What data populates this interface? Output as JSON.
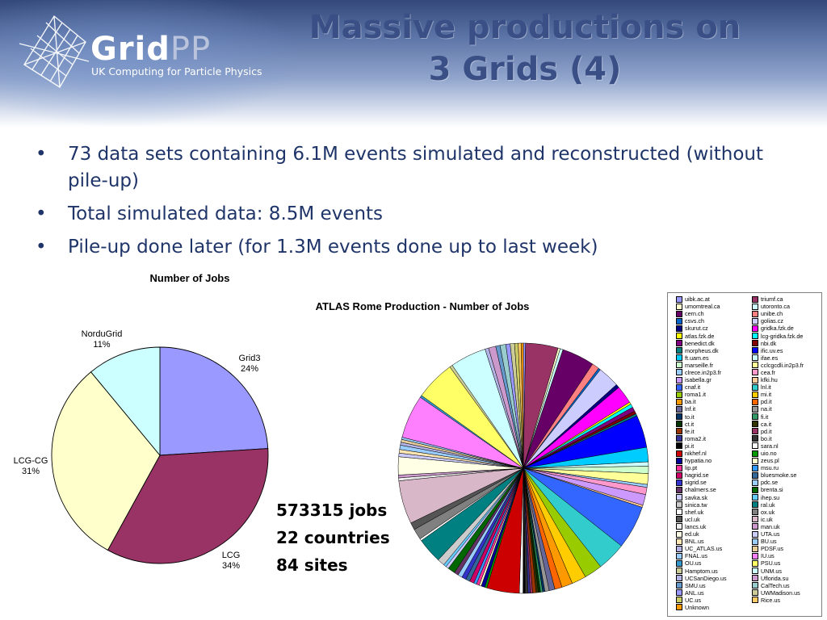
{
  "header": {
    "brand_main": "Grid",
    "brand_pp": "PP",
    "tagline": "UK Computing for Particle Physics",
    "title_line1": "Massive productions on",
    "title_line2": "3 Grids (4)"
  },
  "bullets": [
    "73 data sets containing 6.1M events simulated and reconstructed (without pile-up)",
    "Total simulated data: 8.5M events",
    "Pile-up done later (for 1.3M events done up to last week)"
  ],
  "stats": {
    "jobs": "573315 jobs",
    "countries": "22 countries",
    "sites": "84 sites"
  },
  "chart_data": [
    {
      "type": "pie",
      "title": "Number of Jobs",
      "slices": [
        {
          "label": "Grid3",
          "value": 24,
          "pct": "24%",
          "color": "#9999ff"
        },
        {
          "label": "LCG",
          "value": 34,
          "pct": "34%",
          "color": "#993366"
        },
        {
          "label": "LCG-CG",
          "value": 31,
          "pct": "31%",
          "color": "#ffffcc"
        },
        {
          "label": "NorduGrid",
          "value": 11,
          "pct": "11%",
          "color": "#ccffff"
        }
      ]
    },
    {
      "type": "pie",
      "title": "ATLAS Rome Production - Number of Jobs",
      "legend_position": "right",
      "slices": [
        {
          "label": "uibk.ac.at",
          "value": 0.3,
          "color": "#9999ff"
        },
        {
          "label": "triumf.ca",
          "value": 4.5,
          "color": "#993366"
        },
        {
          "label": "umomtreal.ca",
          "value": 0.3,
          "color": "#ffffcc"
        },
        {
          "label": "utoronto.ca",
          "value": 0.4,
          "color": "#ccffff"
        },
        {
          "label": "cern.ch",
          "value": 4.5,
          "color": "#660066"
        },
        {
          "label": "unibe.ch",
          "value": 1.0,
          "color": "#ff8080"
        },
        {
          "label": "csvs.ch",
          "value": 0.3,
          "color": "#0066cc"
        },
        {
          "label": "golias.cz",
          "value": 3.0,
          "color": "#ccccff"
        },
        {
          "label": "skurut.cz",
          "value": 0.5,
          "color": "#000080"
        },
        {
          "label": "gridka.fzk.de",
          "value": 2.5,
          "color": "#ff00ff"
        },
        {
          "label": "atlas.fzk.de",
          "value": 0.3,
          "color": "#ffff00"
        },
        {
          "label": "lcg-gridka.fzk.de",
          "value": 0.5,
          "color": "#00ffff"
        },
        {
          "label": "benedict.dk",
          "value": 0.6,
          "color": "#800080"
        },
        {
          "label": "nbi.dk",
          "value": 0.4,
          "color": "#800000"
        },
        {
          "label": "morpheus.dk",
          "value": 0.3,
          "color": "#008080"
        },
        {
          "label": "ific.uv.es",
          "value": 4.5,
          "color": "#0000ff"
        },
        {
          "label": "ft.uam.es",
          "value": 2.0,
          "color": "#00ccff"
        },
        {
          "label": "ifae.es",
          "value": 0.6,
          "color": "#ccffff"
        },
        {
          "label": "marseille.fr",
          "value": 1.0,
          "color": "#ccffcc"
        },
        {
          "label": "cclcgcdli.in2p3.fr",
          "value": 1.5,
          "color": "#ffff99"
        },
        {
          "label": "clrece.in2p3.fr",
          "value": 0.4,
          "color": "#99ccff"
        },
        {
          "label": "cea.fr",
          "value": 1.0,
          "color": "#ff99cc"
        },
        {
          "label": "isabella.gr",
          "value": 1.5,
          "color": "#cc99ff"
        },
        {
          "label": "kfki.hu",
          "value": 0.3,
          "color": "#ffcc99"
        },
        {
          "label": "cnaf.it",
          "value": 6.0,
          "color": "#3366ff"
        },
        {
          "label": "lnl.it",
          "value": 4.0,
          "color": "#33cccc"
        },
        {
          "label": "roma1.it",
          "value": 2.5,
          "color": "#99cc00"
        },
        {
          "label": "mi.it",
          "value": 2.0,
          "color": "#ffcc00"
        },
        {
          "label": "ba.it",
          "value": 1.5,
          "color": "#ff9900"
        },
        {
          "label": "pd.it",
          "value": 1.0,
          "color": "#ff6600"
        },
        {
          "label": "lnf.it",
          "value": 0.8,
          "color": "#666699"
        },
        {
          "label": "na.it",
          "value": 0.6,
          "color": "#969696"
        },
        {
          "label": "to.it",
          "value": 0.3,
          "color": "#003366"
        },
        {
          "label": "fi.it",
          "value": 0.3,
          "color": "#339966"
        },
        {
          "label": "ct.it",
          "value": 0.3,
          "color": "#003300"
        },
        {
          "label": "ca.it",
          "value": 0.3,
          "color": "#333300"
        },
        {
          "label": "fe.it",
          "value": 0.5,
          "color": "#993300"
        },
        {
          "label": "pd.it",
          "value": 0.3,
          "color": "#993366"
        },
        {
          "label": "roma2.it",
          "value": 0.3,
          "color": "#333399"
        },
        {
          "label": "bo.it",
          "value": 0.4,
          "color": "#333333"
        },
        {
          "label": "pi.it",
          "value": 0.3,
          "color": "#000000"
        },
        {
          "label": "sara.nl",
          "value": 0.5,
          "color": "#ffffff"
        },
        {
          "label": "nikhef.nl",
          "value": 4.5,
          "color": "#cc0000"
        },
        {
          "label": "uio.no",
          "value": 0.3,
          "color": "#009900"
        },
        {
          "label": "hypatia.no",
          "value": 0.5,
          "color": "#000099"
        },
        {
          "label": "zeus.pl",
          "value": 0.3,
          "color": "#ffffcc"
        },
        {
          "label": "lip.pt",
          "value": 0.4,
          "color": "#ff3399"
        },
        {
          "label": "msu.ru",
          "value": 0.4,
          "color": "#3399ff"
        },
        {
          "label": "hagrid.se",
          "value": 0.6,
          "color": "#cc0066"
        },
        {
          "label": "bluesmoke.se",
          "value": 0.6,
          "color": "#336699"
        },
        {
          "label": "sigrid.se",
          "value": 0.6,
          "color": "#3333cc"
        },
        {
          "label": "pdc.se",
          "value": 0.6,
          "color": "#99ccff"
        },
        {
          "label": "chalmers.se",
          "value": 0.6,
          "color": "#663366"
        },
        {
          "label": "brenta.si",
          "value": 1.0,
          "color": "#006600"
        },
        {
          "label": "savka.sk",
          "value": 0.4,
          "color": "#ccccff"
        },
        {
          "label": "ihep.su",
          "value": 0.4,
          "color": "#66ccff"
        },
        {
          "label": "sinica.tw",
          "value": 1.0,
          "color": "#cccccc"
        },
        {
          "label": "ral.uk",
          "value": 3.5,
          "color": "#008080"
        },
        {
          "label": "shef.uk",
          "value": 0.3,
          "color": "#ffffff"
        },
        {
          "label": "ox.uk",
          "value": 1.5,
          "color": "#808080"
        },
        {
          "label": "ucl.uk",
          "value": 1.0,
          "color": "#555555"
        },
        {
          "label": "ic.uk",
          "value": 6.0,
          "color": "#d8b8c8"
        },
        {
          "label": "lancs.uk",
          "value": 0.4,
          "color": "#eeeeee"
        },
        {
          "label": "man.uk",
          "value": 0.4,
          "color": "#cc99cc"
        },
        {
          "label": "ed.uk",
          "value": 2.5,
          "color": "#ffffe6"
        },
        {
          "label": "UTA.us",
          "value": 0.5,
          "color": "#ccccff"
        },
        {
          "label": "BNL.us",
          "value": 0.5,
          "color": "#ffe6b3"
        },
        {
          "label": "BU.us",
          "value": 0.6,
          "color": "#99ccff"
        },
        {
          "label": "UC_ATLAS.us",
          "value": 0.4,
          "color": "#b3b3e6"
        },
        {
          "label": "PDSF.us",
          "value": 0.4,
          "color": "#e6cc99"
        },
        {
          "label": "FNAL.us",
          "value": 0.3,
          "color": "#99ccff"
        },
        {
          "label": "IU.us",
          "value": 6.0,
          "color": "#ff80ff"
        },
        {
          "label": "OU.us",
          "value": 0.3,
          "color": "#3399cc"
        },
        {
          "label": "PSU.us",
          "value": 5.5,
          "color": "#ffff66"
        },
        {
          "label": "Hamptom.us",
          "value": 0.4,
          "color": "#cccc99"
        },
        {
          "label": "UNM.us",
          "value": 5.0,
          "color": "#ccffff"
        },
        {
          "label": "UCSanDiego.us",
          "value": 0.5,
          "color": "#b3b3e6"
        },
        {
          "label": "Uflorida.su",
          "value": 1.0,
          "color": "#cc99cc"
        },
        {
          "label": "SMU.us",
          "value": 0.6,
          "color": "#6699cc"
        },
        {
          "label": "CalTech.us",
          "value": 0.8,
          "color": "#99cccc"
        },
        {
          "label": "ANL.us",
          "value": 0.6,
          "color": "#9999ff"
        },
        {
          "label": "UWMadison.us",
          "value": 0.6,
          "color": "#cccc99"
        },
        {
          "label": "UC.us",
          "value": 0.5,
          "color": "#cccc66"
        },
        {
          "label": "Rice.us",
          "value": 0.4,
          "color": "#ffcc66"
        },
        {
          "label": "Unknown",
          "value": 0.3,
          "color": "#ff9900"
        }
      ]
    }
  ]
}
